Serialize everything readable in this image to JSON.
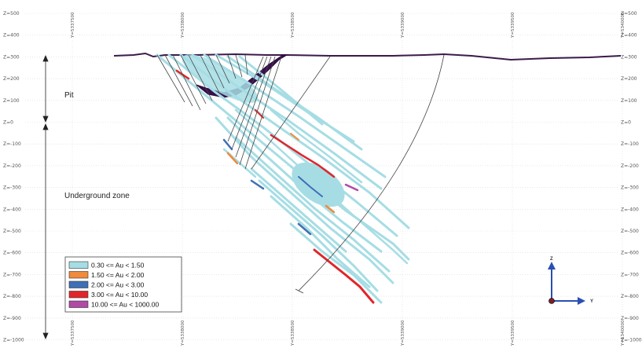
{
  "z_labels": [
    "Z=500",
    "Z=400",
    "Z=300",
    "Z=200",
    "Z=100",
    "Z=0",
    "Z=-100",
    "Z=-200",
    "Z=-300",
    "Z=-400",
    "Z=-500",
    "Z=-600",
    "Z=-700",
    "Z=-800",
    "Z=-900",
    "Z=-1000"
  ],
  "y_top_labels": [
    "Y=5337500",
    "Y=5338000",
    "Y=5338500",
    "Y=5339000",
    "Y=5339500",
    "Y=5340000"
  ],
  "y_bottom_labels": [
    "Y=5337500",
    "Y=5338000",
    "Y=5338500",
    "Y=5339000",
    "Y=5339500",
    "Y=5340000"
  ],
  "annotations": {
    "pit": "Pit",
    "underground": "Underground zone"
  },
  "legend": [
    {
      "label": "0.30 <= Au < 1.50",
      "color": "#a6dde4"
    },
    {
      "label": "1.50 <= Au < 2.00",
      "color": "#f08a3c"
    },
    {
      "label": "2.00 <= Au < 3.00",
      "color": "#3f6fb5"
    },
    {
      "label": "3.00 <= Au < 10.00",
      "color": "#e0262b"
    },
    {
      "label": "10.00 <= Au < 1000.00",
      "color": "#b04aa6"
    }
  ],
  "axis_indicator": {
    "z": "Z",
    "y": "Y"
  }
}
